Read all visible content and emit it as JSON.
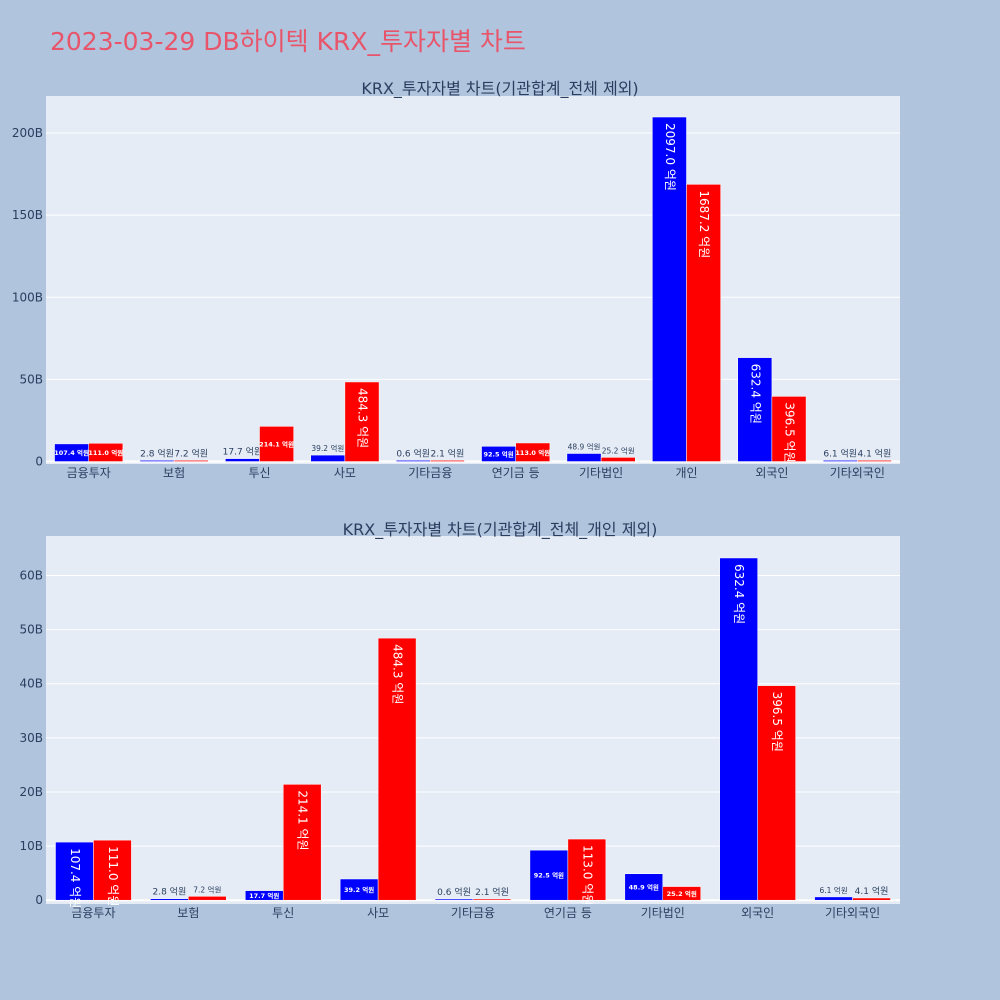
{
  "page": {
    "title": "2023-03-29 DB하이텍 KRX_투자자별 차트"
  },
  "colors": {
    "background": "#b0c4de",
    "plot_bg": "#e5ecf6",
    "buy": "#0000ff",
    "sell": "#ff0000",
    "title": "#e8556a",
    "text": "#2a3f5f"
  },
  "chart_data": [
    {
      "type": "bar",
      "title": "KRX_투자자별 차트(기관합계_전체 제외)",
      "categories": [
        "금융투자",
        "보험",
        "투신",
        "사모",
        "기타금융",
        "연기금 등",
        "기타법인",
        "개인",
        "외국인",
        "기타외국인"
      ],
      "series": [
        {
          "name": "buy",
          "color": "#0000ff",
          "values": [
            10.74,
            0.28,
            1.77,
            3.92,
            0.06,
            9.25,
            4.89,
            209.7,
            63.24,
            0.61
          ],
          "labels": [
            "107.4 억원",
            "2.8 억원",
            "17.7 억원",
            "39.2 억원",
            "0.6 억원",
            "92.5 억원",
            "48.9 억원",
            "2097.0 억원",
            "632.4 억원",
            "6.1 억원"
          ]
        },
        {
          "name": "sell",
          "color": "#ff0000",
          "values": [
            11.1,
            0.72,
            21.41,
            48.43,
            0.21,
            11.3,
            2.52,
            168.72,
            39.65,
            0.41
          ],
          "labels": [
            "111.0 억원",
            "7.2 억원",
            "214.1 억원",
            "484.3 억원",
            "2.1 억원",
            "113.0 억원",
            "25.2 억원",
            "1687.2 억원",
            "396.5 억원",
            "4.1 억원"
          ]
        }
      ],
      "yticks": [
        0,
        50,
        100,
        150,
        200
      ],
      "ytick_labels": [
        "0",
        "50B",
        "100B",
        "150B",
        "200B"
      ],
      "ylim": [
        -1.5,
        222.5
      ]
    },
    {
      "type": "bar",
      "title": "KRX_투자자별 차트(기관합계_전체_개인 제외)",
      "categories": [
        "금융투자",
        "보험",
        "투신",
        "사모",
        "기타금융",
        "연기금 등",
        "기타법인",
        "외국인",
        "기타외국인"
      ],
      "series": [
        {
          "name": "buy",
          "color": "#0000ff",
          "values": [
            10.74,
            0.28,
            1.77,
            3.92,
            0.06,
            9.25,
            4.89,
            63.24,
            0.61
          ],
          "labels": [
            "107.4 억원",
            "2.8 억원",
            "17.7 억원",
            "39.2 억원",
            "0.6 억원",
            "92.5 억원",
            "48.9 억원",
            "632.4 억원",
            "6.1 억원"
          ]
        },
        {
          "name": "sell",
          "color": "#ff0000",
          "values": [
            11.1,
            0.72,
            21.41,
            48.43,
            0.21,
            11.3,
            2.52,
            39.65,
            0.41
          ],
          "labels": [
            "111.0 억원",
            "7.2 억원",
            "214.1 억원",
            "484.3 억원",
            "2.1 억원",
            "113.0 억원",
            "25.2 억원",
            "396.5 억원",
            "4.1 억원"
          ]
        }
      ],
      "yticks": [
        0,
        10,
        20,
        30,
        40,
        50,
        60
      ],
      "ytick_labels": [
        "0",
        "10B",
        "20B",
        "30B",
        "40B",
        "50B",
        "60B"
      ],
      "ylim": [
        -0.7,
        67.3
      ]
    }
  ]
}
